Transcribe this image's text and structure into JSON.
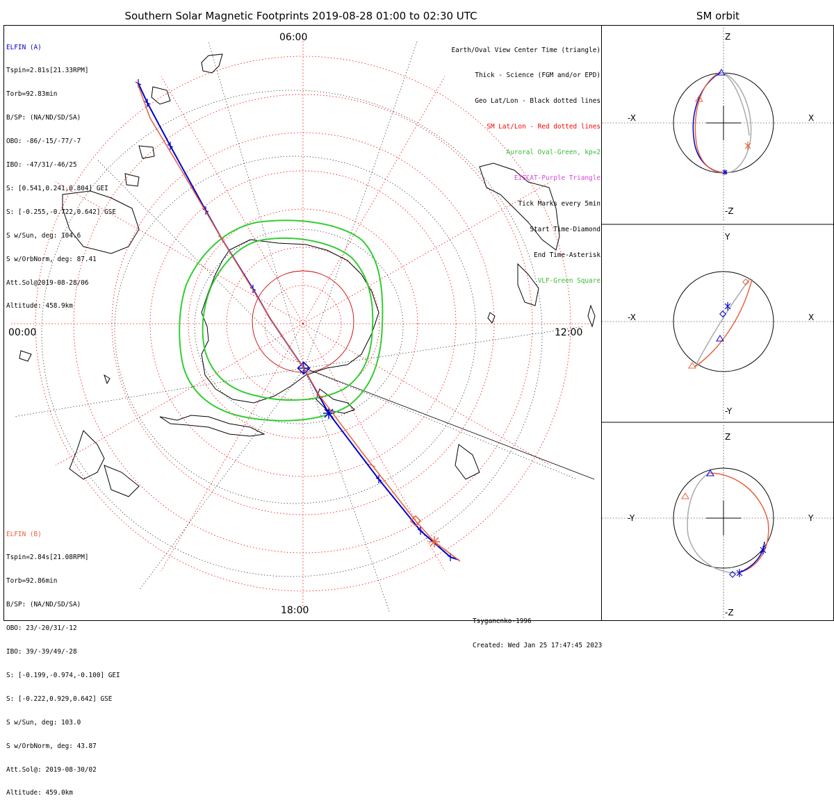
{
  "title": "Southern Solar Magnetic Footprints 2019-08-28 01:00 to 02:30 UTC",
  "orbit_title": "SM orbit",
  "time_labels": {
    "top": "06:00",
    "left": "00:00",
    "right": "12:00",
    "bottom": "18:00"
  },
  "sat_a": {
    "name": "ELFIN (A)",
    "color": "#0000cc",
    "lines": [
      "Tspin=2.81s[21.33RPM]",
      "Torb=92.83min",
      "B/SP: (NA/ND/SD/SA)",
      "OBO: -86/-15/-77/-7",
      "IBO: -47/31/-46/25",
      "S: [0.541,0.241,0.804] GEI",
      "S: [-0.255,-0.722,0.642] GSE",
      "S w/Sun, deg: 104.6",
      "S w/OrbNorm, deg: 87.41",
      "Att.Sol@2019-08-28/06",
      "Altitude: 458.9km"
    ]
  },
  "sat_b": {
    "name": "ELFIN (B)",
    "color": "#e8603c",
    "lines": [
      "Tspin=2.84s[21.08RPM]",
      "Torb=92.86min",
      "B/SP: (NA/ND/SD/SA)",
      "OBO: 23/-20/31/-12",
      "IBO: 39/-39/49/-28",
      "S: [-0.199,-0.974,-0.100] GEI",
      "S: [-0.222,0.929,0.642] GSE",
      "S w/Sun, deg: 103.0",
      "S w/OrbNorm, deg: 43.87",
      "Att.Sol@: 2019-08-30/02",
      "Altitude: 459.0km"
    ]
  },
  "legend": [
    {
      "text": "Earth/Oval View Center Time (triangle)",
      "color": "#000000"
    },
    {
      "text": "Thick - Science (FGM and/or EPD)",
      "color": "#000000"
    },
    {
      "text": "Geo Lat/Lon - Black dotted lines",
      "color": "#000000"
    },
    {
      "text": "SM Lat/Lon - Red dotted lines",
      "color": "#ff0000"
    },
    {
      "text": "Auroral Oval-Green, kp=2",
      "color": "#33bb33"
    },
    {
      "text": "EISCAT-Purple Triangle",
      "color": "#dd44dd"
    },
    {
      "text": "Tick Marks every 5min",
      "color": "#000000"
    },
    {
      "text": "Start Time-Diamond",
      "color": "#000000"
    },
    {
      "text": "End Time-Asterisk",
      "color": "#000000"
    },
    {
      "text": "VLF-Green Square",
      "color": "#33bb33"
    }
  ],
  "credit": {
    "model": "Tsyganenko-1996",
    "created": "Created: Wed Jan 25 17:47:45 2023"
  },
  "orbit_panels": [
    {
      "top": "Z",
      "bottom": "-Z",
      "left": "-X",
      "right": "X"
    },
    {
      "top": "Y",
      "bottom": "-Y",
      "left": "-X",
      "right": "X"
    },
    {
      "top": "Z",
      "bottom": "-Z",
      "left": "-Y",
      "right": "Y"
    }
  ],
  "colors": {
    "oval": "#33cc33",
    "sm_grid": "#ff0000",
    "geo_grid": "#000000"
  }
}
